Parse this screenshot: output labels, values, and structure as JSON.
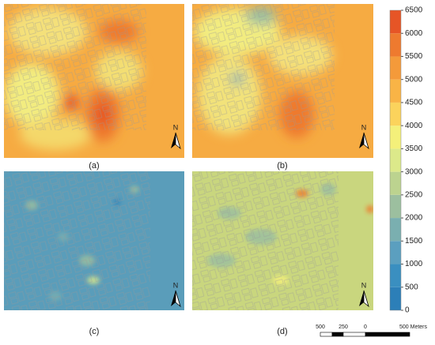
{
  "panels": [
    {
      "label": "(a)",
      "north": "N"
    },
    {
      "label": "(b)",
      "north": "N"
    },
    {
      "label": "(c)",
      "north": "N"
    },
    {
      "label": "(d)",
      "north": "N"
    }
  ],
  "colorbar": {
    "lim": [
      0,
      6500
    ],
    "ticks": [
      0,
      500,
      1000,
      1500,
      2000,
      2500,
      3000,
      3500,
      4000,
      4500,
      5000,
      5500,
      6000,
      6500
    ],
    "colors": [
      "#2c7fb8",
      "#3a8fc0",
      "#5b9fbf",
      "#7aafb0",
      "#9cbf9f",
      "#bcd38f",
      "#dce98a",
      "#f4f07a",
      "#fbd35c",
      "#f9b446",
      "#f49a3a",
      "#ee7a2f",
      "#e65526"
    ]
  },
  "scale_bar": {
    "labels": [
      "500",
      "250",
      "0",
      "500 Meters"
    ]
  }
}
